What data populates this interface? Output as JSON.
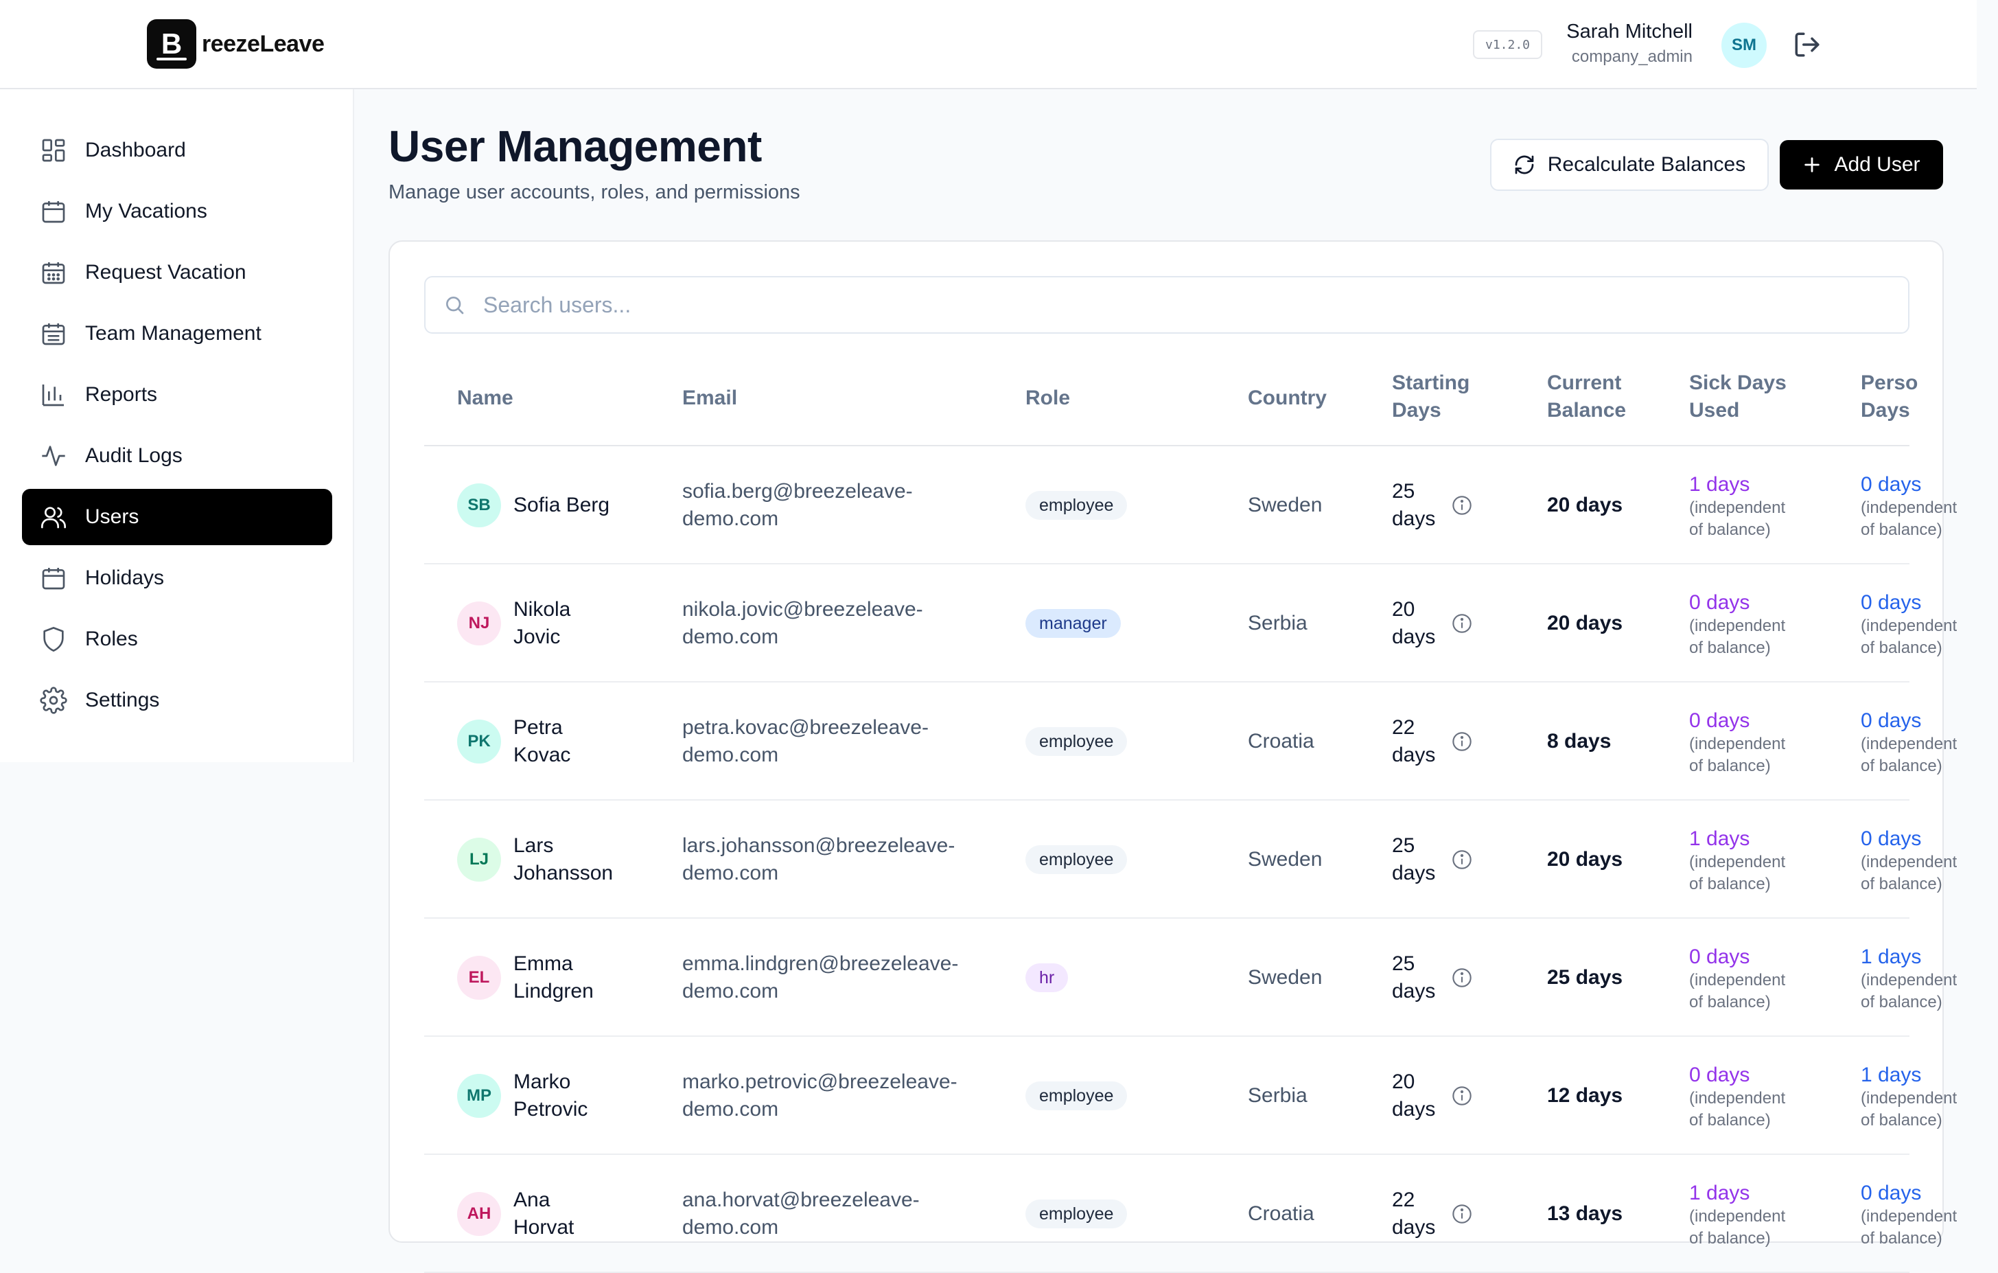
{
  "app": {
    "logo_letter": "B",
    "logo_text": "reezeLeave",
    "version": "v1.2.0"
  },
  "user": {
    "name": "Sarah Mitchell",
    "role": "company_admin",
    "initials": "SM"
  },
  "sidebar": {
    "items": [
      {
        "label": "Dashboard",
        "icon": "dashboard-icon"
      },
      {
        "label": "My Vacations",
        "icon": "calendar-icon"
      },
      {
        "label": "Request Vacation",
        "icon": "calendar-grid-icon"
      },
      {
        "label": "Team Management",
        "icon": "calendar-grid-icon"
      },
      {
        "label": "Reports",
        "icon": "bar-chart-icon"
      },
      {
        "label": "Audit Logs",
        "icon": "activity-icon"
      },
      {
        "label": "Users",
        "icon": "users-icon",
        "active": true
      },
      {
        "label": "Holidays",
        "icon": "calendar-icon"
      },
      {
        "label": "Roles",
        "icon": "shield-icon"
      },
      {
        "label": "Settings",
        "icon": "gear-icon"
      }
    ]
  },
  "page": {
    "title": "User Management",
    "subtitle": "Manage user accounts, roles, and permissions",
    "recalc_label": "Recalculate Balances",
    "add_label": "Add User"
  },
  "search": {
    "placeholder": "Search users..."
  },
  "table": {
    "headers": {
      "name": "Name",
      "email": "Email",
      "role": "Role",
      "country": "Country",
      "starting_1": "Starting",
      "starting_2": "Days",
      "balance_1": "Current",
      "balance_2": "Balance",
      "sick_1": "Sick Days",
      "sick_2": "Used",
      "pers_1": "Perso",
      "pers_2": "Days"
    },
    "note_1": "(independent",
    "note_2": "of balance)",
    "rows": [
      {
        "initials": "SB",
        "name_1": "Sofia Berg",
        "name_2": "",
        "email_1": "sofia.berg@breezeleave-",
        "email_2": "demo.com",
        "role": "employee",
        "country": "Sweden",
        "start_1": "25",
        "start_2": "days",
        "balance": "20 days",
        "sick": "1 days",
        "personal": "0 days"
      },
      {
        "initials": "NJ",
        "name_1": "Nikola",
        "name_2": "Jovic",
        "email_1": "nikola.jovic@breezeleave-",
        "email_2": "demo.com",
        "role": "manager",
        "country": "Serbia",
        "start_1": "20",
        "start_2": "days",
        "balance": "20 days",
        "sick": "0 days",
        "personal": "0 days"
      },
      {
        "initials": "PK",
        "name_1": "Petra",
        "name_2": "Kovac",
        "email_1": "petra.kovac@breezeleave-",
        "email_2": "demo.com",
        "role": "employee",
        "country": "Croatia",
        "start_1": "22",
        "start_2": "days",
        "balance": "8 days",
        "sick": "0 days",
        "personal": "0 days"
      },
      {
        "initials": "LJ",
        "name_1": "Lars",
        "name_2": "Johansson",
        "email_1": "lars.johansson@breezeleave-",
        "email_2": "demo.com",
        "role": "employee",
        "country": "Sweden",
        "start_1": "25",
        "start_2": "days",
        "balance": "20 days",
        "sick": "1 days",
        "personal": "0 days"
      },
      {
        "initials": "EL",
        "name_1": "Emma",
        "name_2": "Lindgren",
        "email_1": "emma.lindgren@breezeleave-",
        "email_2": "demo.com",
        "role": "hr",
        "country": "Sweden",
        "start_1": "25",
        "start_2": "days",
        "balance": "25 days",
        "sick": "0 days",
        "personal": "1 days"
      },
      {
        "initials": "MP",
        "name_1": "Marko",
        "name_2": "Petrovic",
        "email_1": "marko.petrovic@breezeleave-",
        "email_2": "demo.com",
        "role": "employee",
        "country": "Serbia",
        "start_1": "20",
        "start_2": "days",
        "balance": "12 days",
        "sick": "0 days",
        "personal": "1 days"
      },
      {
        "initials": "AH",
        "name_1": "Ana",
        "name_2": "Horvat",
        "email_1": "ana.horvat@breezeleave-",
        "email_2": "demo.com",
        "role": "employee",
        "country": "Croatia",
        "start_1": "22",
        "start_2": "days",
        "balance": "13 days",
        "sick": "1 days",
        "personal": "0 days"
      }
    ]
  }
}
